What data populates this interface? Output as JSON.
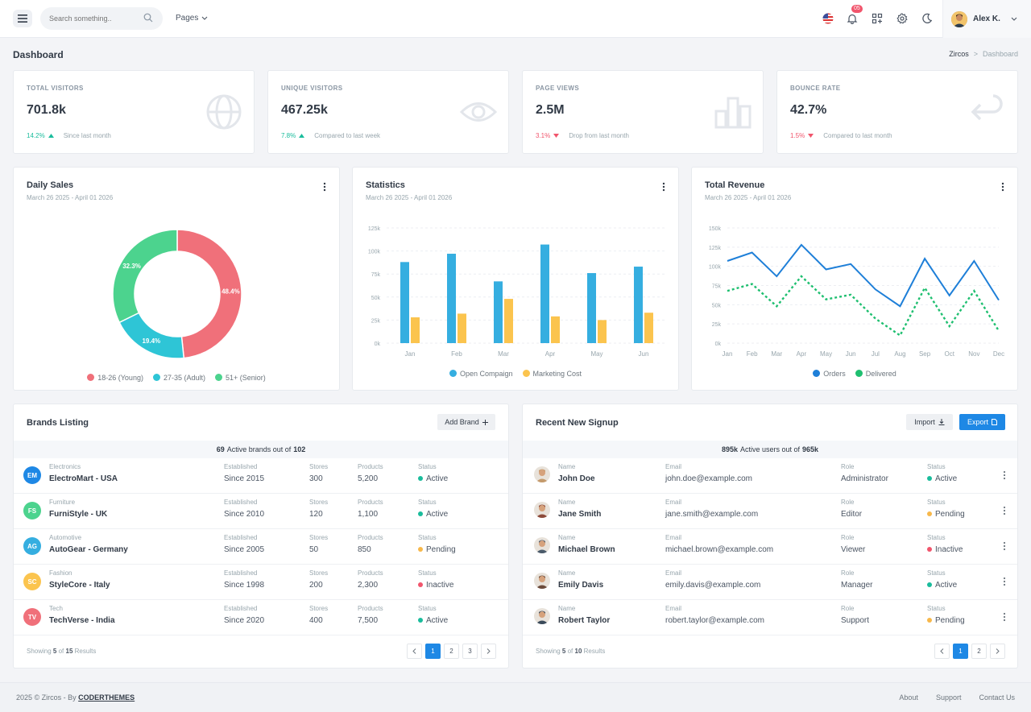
{
  "topbar": {
    "search_placeholder": "Search something..",
    "pages_label": "Pages",
    "notification_count": "05",
    "user_name": "Alex K."
  },
  "page": {
    "title": "Dashboard",
    "breadcrumb_root": "Zircos",
    "breadcrumb_sep": ">",
    "breadcrumb_current": "Dashboard"
  },
  "stats": [
    {
      "label": "TOTAL VISITORS",
      "value": "701.8k",
      "change": "14.2%",
      "direction": "up",
      "note": "Since last month",
      "icon": "globe-icon"
    },
    {
      "label": "UNIQUE VISITORS",
      "value": "467.25k",
      "change": "7.8%",
      "direction": "up",
      "note": "Compared to last week",
      "icon": "eye-icon"
    },
    {
      "label": "PAGE VIEWS",
      "value": "2.5M",
      "change": "3.1%",
      "direction": "down",
      "note": "Drop from last month",
      "icon": "bar-chart-icon"
    },
    {
      "label": "BOUNCE RATE",
      "value": "42.7%",
      "change": "1.5%",
      "direction": "down",
      "note": "Compared to last month",
      "icon": "return-arrow-icon"
    }
  ],
  "colors": {
    "primary": "#1e88e5",
    "green": "#1abc9c",
    "red": "#f1556c",
    "pie_young": "#f0707a",
    "pie_adult": "#2ec5d6",
    "pie_senior": "#4cd38e",
    "bar_open": "#35aee0",
    "bar_marketing": "#fbc44e",
    "line_orders": "#1e7fd8",
    "line_delivered": "#1fbf70"
  },
  "cards": {
    "daily_sales": {
      "title": "Daily Sales",
      "subtitle": "March 26 2025 - April 01 2026"
    },
    "statistics": {
      "title": "Statistics",
      "subtitle": "March 26 2025 - April 01 2026"
    },
    "revenue": {
      "title": "Total Revenue",
      "subtitle": "March 26 2025 - April 01 2026"
    }
  },
  "chart_data": [
    {
      "type": "pie",
      "labels": [
        "18-26 (Young)",
        "27-35 (Adult)",
        "51+ (Senior)"
      ],
      "values": [
        48.4,
        19.4,
        32.3
      ],
      "data_labels": [
        "48.4%",
        "19.4%",
        "32.3%"
      ],
      "legend": "bottom"
    },
    {
      "type": "bar",
      "categories": [
        "Jan",
        "Feb",
        "Mar",
        "Apr",
        "May",
        "Jun"
      ],
      "series": [
        {
          "name": "Open Compaign",
          "values": [
            88,
            97,
            67,
            107,
            76,
            83
          ]
        },
        {
          "name": "Marketing Cost",
          "values": [
            28,
            32,
            48,
            29,
            25,
            33
          ]
        }
      ],
      "y_ticks": [
        "0k",
        "25k",
        "50k",
        "75k",
        "100k",
        "125k"
      ],
      "ylim": [
        0,
        125
      ],
      "grid": true,
      "legend": "bottom"
    },
    {
      "type": "line",
      "categories": [
        "Jan",
        "Feb",
        "Mar",
        "Apr",
        "May",
        "Jun",
        "Jul",
        "Aug",
        "Sep",
        "Oct",
        "Nov",
        "Dec"
      ],
      "series": [
        {
          "name": "Orders",
          "values": [
            107,
            118,
            87,
            128,
            96,
            103,
            70,
            48,
            110,
            62,
            107,
            56
          ]
        },
        {
          "name": "Delivered",
          "values": [
            68,
            77,
            48,
            87,
            57,
            63,
            32,
            10,
            72,
            22,
            68,
            16
          ]
        }
      ],
      "y_ticks": [
        "0k",
        "25k",
        "50k",
        "75k",
        "100k",
        "125k",
        "150k"
      ],
      "ylim": [
        0,
        150
      ],
      "grid": true,
      "legend": "bottom"
    }
  ],
  "brands": {
    "title": "Brands Listing",
    "add_label": "Add Brand",
    "summary_count": "69",
    "summary_text": "Active brands out of",
    "summary_total": "102",
    "col_established": "Established",
    "col_stores": "Stores",
    "col_products": "Products",
    "col_status": "Status",
    "rows": [
      {
        "initials": "EM",
        "color": "#1e88e5",
        "category": "Electronics",
        "name": "ElectroMart - USA",
        "established": "Since 2015",
        "stores": "300",
        "products": "5,200",
        "status": "Active",
        "status_color": "#1abc9c"
      },
      {
        "initials": "FS",
        "color": "#4cd38e",
        "category": "Furniture",
        "name": "FurniStyle - UK",
        "established": "Since 2010",
        "stores": "120",
        "products": "1,100",
        "status": "Active",
        "status_color": "#1abc9c"
      },
      {
        "initials": "AG",
        "color": "#35aee0",
        "category": "Automotive",
        "name": "AutoGear - Germany",
        "established": "Since 2005",
        "stores": "50",
        "products": "850",
        "status": "Pending",
        "status_color": "#f7b84b"
      },
      {
        "initials": "SC",
        "color": "#fbc44e",
        "category": "Fashion",
        "name": "StyleCore - Italy",
        "established": "Since 1998",
        "stores": "200",
        "products": "2,300",
        "status": "Inactive",
        "status_color": "#f1556c"
      },
      {
        "initials": "TV",
        "color": "#f0707a",
        "category": "Tech",
        "name": "TechVerse - India",
        "established": "Since 2020",
        "stores": "400",
        "products": "7,500",
        "status": "Active",
        "status_color": "#1abc9c"
      }
    ],
    "showing_prefix": "Showing",
    "showing_count": "5",
    "showing_of": "of",
    "showing_total": "15",
    "showing_suffix": "Results",
    "pages": [
      "1",
      "2",
      "3"
    ]
  },
  "signups": {
    "title": "Recent New Signup",
    "import_label": "Import",
    "export_label": "Export",
    "summary_count": "895k",
    "summary_text": "Active users out of",
    "summary_total": "965k",
    "col_name": "Name",
    "col_email": "Email",
    "col_role": "Role",
    "col_status": "Status",
    "rows": [
      {
        "name": "John Doe",
        "email": "john.doe@example.com",
        "role": "Administrator",
        "status": "Active",
        "status_color": "#1abc9c",
        "avatar_color": "#c49a6c"
      },
      {
        "name": "Jane Smith",
        "email": "jane.smith@example.com",
        "role": "Editor",
        "status": "Pending",
        "status_color": "#f7b84b",
        "avatar_color": "#8d4a3a"
      },
      {
        "name": "Michael Brown",
        "email": "michael.brown@example.com",
        "role": "Viewer",
        "status": "Inactive",
        "status_color": "#f1556c",
        "avatar_color": "#4a5a6a"
      },
      {
        "name": "Emily Davis",
        "email": "emily.davis@example.com",
        "role": "Manager",
        "status": "Active",
        "status_color": "#1abc9c",
        "avatar_color": "#6b4a3a"
      },
      {
        "name": "Robert Taylor",
        "email": "robert.taylor@example.com",
        "role": "Support",
        "status": "Pending",
        "status_color": "#f7b84b",
        "avatar_color": "#3a4a5a"
      }
    ],
    "showing_prefix": "Showing",
    "showing_count": "5",
    "showing_of": "of",
    "showing_total": "10",
    "showing_suffix": "Results",
    "pages": [
      "1",
      "2"
    ]
  },
  "footer": {
    "copyright": "2025 © Zircos - By",
    "brand": "CODERTHEMES",
    "links": [
      "About",
      "Support",
      "Contact Us"
    ]
  }
}
